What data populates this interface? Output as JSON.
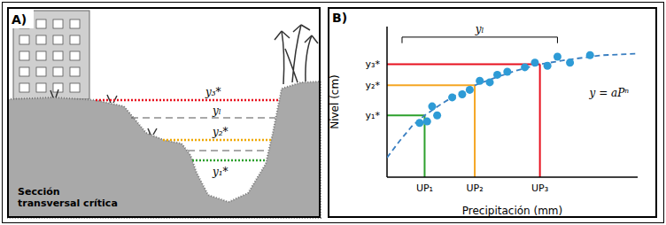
{
  "panel_a": {
    "label": "A)",
    "caption": [
      "Sección",
      "transversal crítica"
    ],
    "levels": [
      {
        "label": "y₃*",
        "color": "#e8101e",
        "line_style": "dotted"
      },
      {
        "label": "yₗ",
        "color": "#555555",
        "line_style": "dashed"
      },
      {
        "label": "y₂*",
        "color": "#f0a800",
        "line_style": "dotted"
      },
      {
        "label": "y₁*",
        "color": "#2ca02c",
        "line_style": "dotted"
      }
    ]
  },
  "chart_data": {
    "type": "scatter",
    "title": "B)",
    "x_label": "Precipitación (mm)",
    "y_label": "Nivel (cm)",
    "xlim": [
      0,
      10
    ],
    "ylim": [
      0,
      10
    ],
    "xticks": [
      {
        "value": 1.5,
        "label": "UP₁"
      },
      {
        "value": 3.5,
        "label": "UP₂"
      },
      {
        "value": 6.1,
        "label": "UP₃"
      }
    ],
    "yticks": [
      {
        "value": 4.1,
        "label": "y₁*"
      },
      {
        "value": 6.1,
        "label": "y₂*"
      },
      {
        "value": 7.5,
        "label": "y₃*"
      }
    ],
    "colors": [
      "#2ca02c",
      "#f5a623",
      "#e8101e"
    ],
    "grid": false,
    "points": {
      "color": "#2e9bd6",
      "marker": "circle",
      "x": [
        1.3,
        1.6,
        2.0,
        1.8,
        2.6,
        3.0,
        3.3,
        3.7,
        4.1,
        4.4,
        4.8,
        5.5,
        5.9,
        6.4,
        6.8,
        7.3,
        8.1
      ],
      "y": [
        3.6,
        3.7,
        4.1,
        4.7,
        5.3,
        5.5,
        5.8,
        6.4,
        6.3,
        6.8,
        7.0,
        7.3,
        7.6,
        7.4,
        8.0,
        7.6,
        8.1
      ]
    },
    "curve": {
      "color": "#3a7fc1",
      "line_style": "dashed",
      "x": [
        0,
        0.5,
        1,
        1.5,
        2.2,
        2.9,
        3.5,
        4.3,
        5.2,
        6.1,
        7.2,
        8.6,
        10
      ],
      "y": [
        1.3,
        2.4,
        3.4,
        4.1,
        4.9,
        5.6,
        6.1,
        6.6,
        7.1,
        7.5,
        7.8,
        8.1,
        8.2
      ]
    },
    "annotations": [
      {
        "text": "y = aPⁿ",
        "x": 7.9,
        "y": 5.6
      },
      {
        "text": "yₗ",
        "x": [
          0.6,
          6.8
        ],
        "y": 9.3
      }
    ]
  }
}
